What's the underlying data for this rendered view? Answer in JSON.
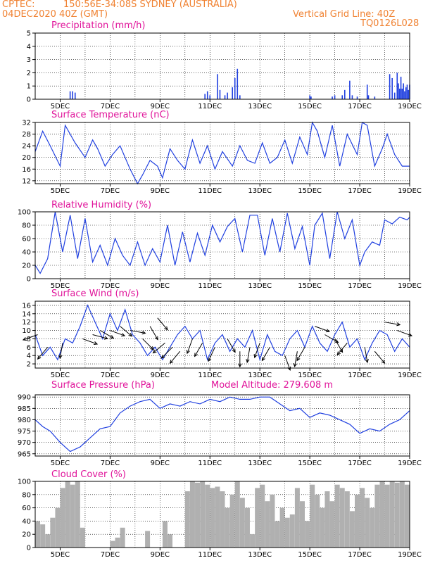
{
  "header": {
    "source": "CPTEC:",
    "location": "150:56E-34:08S   SYDNEY (AUSTRALIA)",
    "init": "04DEC2020 40Z (GMT)",
    "grid_note": "Vertical Grid Line: 40Z",
    "code": "TQ0126L028"
  },
  "x_ticks": [
    "5DEC",
    "7DEC",
    "9DEC",
    "11DEC",
    "13DEC",
    "15DEC",
    "17DEC",
    "19DEC"
  ],
  "chart_data": [
    {
      "type": "bar",
      "id": "precip",
      "title": "Precipitation (mm/h)",
      "ylim": [
        0,
        5
      ],
      "yticks": [
        0,
        1,
        2,
        3,
        4,
        5
      ],
      "color": "#2040e0",
      "x": [
        5.4,
        5.5,
        5.6,
        10.8,
        10.9,
        11.0,
        11.3,
        11.4,
        11.6,
        11.7,
        11.9,
        12.0,
        12.1,
        12.2,
        15.0,
        15.05,
        15.9,
        16.0,
        16.3,
        16.4,
        16.6,
        16.7,
        16.9,
        17.3,
        17.35,
        17.6,
        18.2,
        18.3,
        18.4,
        18.5,
        18.55,
        18.6,
        18.65,
        18.7,
        18.75,
        18.8,
        18.85,
        18.9,
        18.95,
        19.0
      ],
      "values": [
        0.6,
        0.6,
        0.5,
        0.4,
        0.6,
        0.3,
        1.9,
        0.7,
        0.3,
        0.5,
        0.9,
        1.6,
        2.3,
        0.3,
        0.3,
        0.2,
        0.2,
        0.3,
        0.3,
        0.7,
        1.4,
        0.3,
        0.2,
        1.1,
        0.3,
        0.2,
        1.9,
        1.6,
        0.5,
        2.0,
        1.2,
        0.8,
        1.7,
        0.8,
        1.2,
        0.6,
        0.9,
        1.1,
        0.7,
        1.1
      ]
    },
    {
      "type": "line",
      "id": "temp",
      "title": "Surface Temperature (nC)",
      "ylim": [
        11,
        32
      ],
      "yticks": [
        12,
        16,
        20,
        24,
        28,
        32
      ],
      "color": "#2040e0",
      "x": [
        4.0,
        4.3,
        4.6,
        5.0,
        5.2,
        5.6,
        6.0,
        6.3,
        6.5,
        6.8,
        7.1,
        7.4,
        7.8,
        8.1,
        8.3,
        8.6,
        8.9,
        9.1,
        9.4,
        9.7,
        10.0,
        10.3,
        10.6,
        10.9,
        11.2,
        11.5,
        11.9,
        12.2,
        12.5,
        12.8,
        13.1,
        13.4,
        13.7,
        14.0,
        14.3,
        14.6,
        14.9,
        15.1,
        15.3,
        15.6,
        15.9,
        16.2,
        16.5,
        16.9,
        17.1,
        17.3,
        17.6,
        17.9,
        18.1,
        18.4,
        18.7,
        19.0
      ],
      "values": [
        22,
        29,
        24,
        17,
        31,
        25,
        20,
        26,
        23,
        17,
        21,
        24,
        16,
        11,
        14,
        19,
        17,
        13,
        23,
        19,
        16,
        26,
        18,
        24,
        16,
        22,
        17,
        24,
        19,
        18,
        25,
        18,
        20,
        26,
        18,
        27,
        21,
        32,
        29,
        20,
        31,
        17,
        28,
        21,
        32,
        31,
        17,
        23,
        28,
        21,
        17,
        17
      ]
    },
    {
      "type": "line",
      "id": "humidity",
      "title": "Relative Humidity (%)",
      "ylim": [
        0,
        100
      ],
      "yticks": [
        0,
        20,
        40,
        60,
        80,
        100
      ],
      "color": "#2040e0",
      "x": [
        4.0,
        4.2,
        4.5,
        4.8,
        5.1,
        5.4,
        5.7,
        6.0,
        6.3,
        6.6,
        6.9,
        7.2,
        7.5,
        7.8,
        8.1,
        8.4,
        8.7,
        9.0,
        9.3,
        9.6,
        9.9,
        10.2,
        10.5,
        10.8,
        11.1,
        11.4,
        11.7,
        12.0,
        12.3,
        12.6,
        12.9,
        13.2,
        13.5,
        13.8,
        14.1,
        14.4,
        14.7,
        15.0,
        15.2,
        15.5,
        15.8,
        16.1,
        16.4,
        16.7,
        17.0,
        17.2,
        17.5,
        17.8,
        18.0,
        18.3,
        18.6,
        18.9,
        19.0
      ],
      "values": [
        20,
        8,
        30,
        100,
        40,
        95,
        30,
        90,
        25,
        50,
        20,
        60,
        35,
        20,
        55,
        20,
        45,
        25,
        80,
        20,
        70,
        25,
        68,
        35,
        80,
        55,
        78,
        90,
        40,
        95,
        95,
        35,
        90,
        40,
        98,
        45,
        78,
        20,
        80,
        98,
        30,
        100,
        60,
        88,
        20,
        40,
        55,
        50,
        88,
        82,
        92,
        88,
        92
      ]
    },
    {
      "type": "line",
      "id": "wind",
      "title": "Surface Wind (m/s)",
      "ylim": [
        1,
        17
      ],
      "yticks": [
        2,
        4,
        6,
        8,
        10,
        12,
        14,
        16
      ],
      "color": "#2040e0",
      "x": [
        4.0,
        4.3,
        4.6,
        4.9,
        5.2,
        5.5,
        5.8,
        6.1,
        6.4,
        6.7,
        7.0,
        7.3,
        7.6,
        7.9,
        8.2,
        8.5,
        8.8,
        9.1,
        9.4,
        9.7,
        10.0,
        10.3,
        10.6,
        10.9,
        11.2,
        11.5,
        11.8,
        12.1,
        12.4,
        12.7,
        13.0,
        13.3,
        13.6,
        13.9,
        14.2,
        14.5,
        14.8,
        15.1,
        15.4,
        15.7,
        16.0,
        16.3,
        16.6,
        16.9,
        17.2,
        17.5,
        17.8,
        18.1,
        18.4,
        18.7,
        19.0
      ],
      "values": [
        9,
        4,
        6,
        3,
        8,
        7,
        11,
        16,
        12,
        8,
        14,
        10,
        15,
        9,
        7,
        4,
        6,
        3,
        6,
        9,
        11,
        8,
        10,
        3,
        7,
        9,
        5,
        8,
        6,
        10,
        3,
        9,
        5,
        4,
        8,
        10,
        6,
        11,
        7,
        5,
        9,
        12,
        6,
        8,
        3,
        7,
        10,
        9,
        5,
        8,
        6
      ]
    },
    {
      "type": "line",
      "id": "pressure",
      "title": "Surface Pressure (hPa)",
      "annotation": "Model Altitude: 279.608  m",
      "ylim": [
        964,
        991
      ],
      "yticks": [
        965,
        970,
        975,
        980,
        985,
        990
      ],
      "color": "#2040e0",
      "x": [
        4.0,
        4.3,
        4.6,
        5.0,
        5.4,
        5.8,
        6.2,
        6.6,
        7.0,
        7.4,
        7.8,
        8.2,
        8.6,
        9.0,
        9.4,
        9.8,
        10.2,
        10.6,
        11.0,
        11.4,
        11.8,
        12.2,
        12.6,
        13.0,
        13.4,
        13.8,
        14.2,
        14.6,
        15.0,
        15.4,
        15.8,
        16.2,
        16.6,
        17.0,
        17.4,
        17.8,
        18.2,
        18.6,
        19.0
      ],
      "values": [
        980,
        977,
        975,
        970,
        966,
        968,
        972,
        976,
        977,
        983,
        986,
        988,
        989,
        985,
        987,
        986,
        988,
        987,
        989,
        988,
        990,
        989,
        989,
        990,
        990,
        987,
        984,
        985,
        981,
        983,
        982,
        980,
        978,
        974,
        976,
        975,
        978,
        980,
        984
      ]
    },
    {
      "type": "bar",
      "id": "cloud",
      "title": "Cloud Cover (%)",
      "ylim": [
        0,
        100
      ],
      "yticks": [
        0,
        20,
        40,
        60,
        80,
        100
      ],
      "color": "#b0b0b0",
      "x": [
        4.1,
        4.3,
        4.5,
        4.7,
        4.9,
        5.1,
        5.3,
        5.5,
        5.7,
        5.9,
        7.1,
        7.3,
        7.5,
        8.5,
        9.2,
        9.4,
        10.1,
        10.3,
        10.5,
        10.7,
        10.9,
        11.1,
        11.3,
        11.5,
        11.7,
        11.9,
        12.1,
        12.3,
        12.5,
        12.7,
        12.9,
        13.1,
        13.3,
        13.5,
        13.7,
        13.9,
        14.1,
        14.3,
        14.5,
        14.7,
        14.9,
        15.1,
        15.3,
        15.5,
        15.7,
        15.9,
        16.1,
        16.3,
        16.5,
        16.7,
        16.9,
        17.1,
        17.3,
        17.5,
        17.7,
        17.9,
        18.1,
        18.3,
        18.5,
        18.7,
        18.9
      ],
      "values": [
        40,
        35,
        20,
        45,
        60,
        90,
        100,
        95,
        100,
        30,
        10,
        15,
        30,
        25,
        40,
        20,
        85,
        100,
        98,
        100,
        95,
        90,
        92,
        85,
        60,
        80,
        100,
        75,
        60,
        20,
        90,
        95,
        70,
        80,
        40,
        60,
        45,
        50,
        90,
        70,
        40,
        95,
        80,
        60,
        85,
        70,
        95,
        90,
        85,
        55,
        80,
        90,
        75,
        60,
        95,
        100,
        95,
        100,
        98,
        100,
        95
      ]
    }
  ],
  "wind_arrows": {
    "x": [
      4.1,
      4.5,
      5.1,
      5.9,
      6.3,
      6.6,
      7.0,
      7.4,
      7.8,
      8.3,
      8.6,
      8.9,
      9.2,
      9.5,
      9.8,
      10.3,
      10.7,
      11.2,
      11.7,
      12.2,
      12.6,
      13.0,
      13.4,
      14.0,
      14.5,
      14.8,
      15.2,
      15.6,
      16.0,
      16.5,
      17.2,
      17.6,
      18.0,
      18.5
    ],
    "speed": [
      9,
      6,
      7,
      8,
      9,
      10,
      10,
      11,
      10,
      8,
      11,
      13,
      7,
      6,
      5,
      8,
      7,
      6,
      8,
      5,
      6,
      7,
      6,
      4,
      5,
      6,
      11,
      9,
      8,
      7,
      6,
      5,
      12,
      10
    ],
    "dir_deg": [
      -160,
      -130,
      -100,
      -20,
      -15,
      -30,
      -20,
      -40,
      -10,
      -45,
      -60,
      -50,
      -140,
      -135,
      -130,
      -110,
      -120,
      -115,
      -60,
      -90,
      -100,
      -110,
      -120,
      -70,
      -100,
      -120,
      -20,
      -30,
      -60,
      -130,
      -80,
      -50,
      -10,
      -20
    ]
  }
}
